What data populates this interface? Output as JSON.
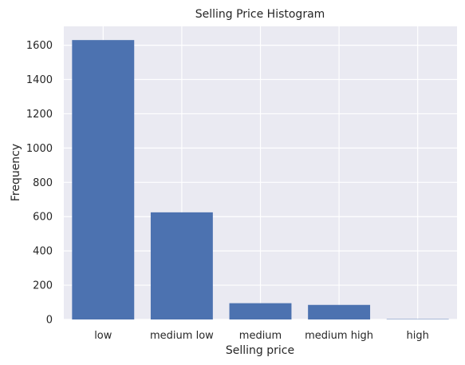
{
  "chart_data": {
    "type": "bar",
    "title": "Selling Price Histogram",
    "xlabel": "Selling price",
    "ylabel": "Frequency",
    "categories": [
      "low",
      "medium low",
      "medium",
      "medium high",
      "high"
    ],
    "values": [
      1630,
      625,
      95,
      85,
      2
    ],
    "ylim": [
      0,
      1710
    ],
    "y_ticks": [
      0,
      200,
      400,
      600,
      800,
      1000,
      1200,
      1400,
      1600
    ],
    "grid": true,
    "bar_color": "#4c72b0",
    "background_color": "#eaeaf2",
    "grid_color": "#ffffff"
  }
}
